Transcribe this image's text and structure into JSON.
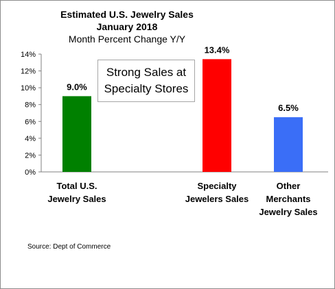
{
  "chart_data": {
    "type": "bar",
    "title_lines": [
      "Estimated U.S. Jewelry Sales",
      "January 2018"
    ],
    "subtitle": "Month Percent Change Y/Y",
    "xlabel": "",
    "ylabel": "",
    "ylim": [
      0,
      14
    ],
    "yticks": [
      "0%",
      "2%",
      "4%",
      "6%",
      "8%",
      "10%",
      "12%",
      "14%"
    ],
    "grid": false,
    "categories": [
      [
        "Total U.S.",
        "Jewelry Sales"
      ],
      [
        "Specialty",
        "Jewelers Sales"
      ],
      [
        "Other",
        "Merchants",
        "Jewelry Sales"
      ]
    ],
    "values": [
      9.0,
      13.4,
      6.5
    ],
    "value_labels": [
      "9.0%",
      "13.4%",
      "6.5%"
    ],
    "colors": [
      "#008000",
      "#ff0000",
      "#3a6ef7"
    ],
    "annotation": [
      "Strong Sales at",
      "Specialty Stores"
    ],
    "source": "Source:  Dept of Commerce"
  }
}
